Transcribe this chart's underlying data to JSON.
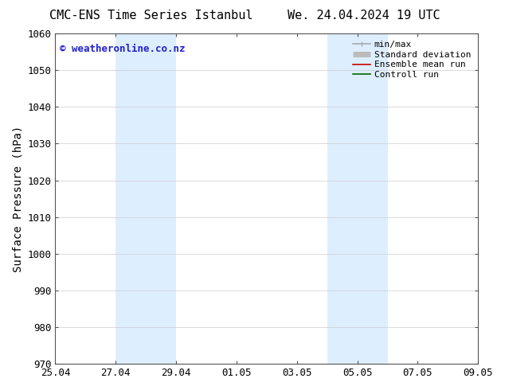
{
  "title_left": "CMC-ENS Time Series Istanbul",
  "title_right": "We. 24.04.2024 19 UTC",
  "ylabel": "Surface Pressure (hPa)",
  "ylim": [
    970,
    1060
  ],
  "yticks": [
    970,
    980,
    990,
    1000,
    1010,
    1020,
    1030,
    1040,
    1050,
    1060
  ],
  "xtick_labels": [
    "25.04",
    "27.04",
    "29.04",
    "01.05",
    "03.05",
    "05.05",
    "07.05",
    "09.05"
  ],
  "xtick_positions": [
    0,
    2,
    4,
    6,
    8,
    10,
    12,
    14
  ],
  "xlim": [
    0,
    14
  ],
  "shaded_regions": [
    {
      "x_start": 2,
      "x_end": 4,
      "color": "#ddeeff",
      "alpha": 1.0
    },
    {
      "x_start": 9,
      "x_end": 11,
      "color": "#ddeeff",
      "alpha": 1.0
    }
  ],
  "watermark_text": "© weatheronline.co.nz",
  "watermark_color": "#2222cc",
  "background_color": "#ffffff",
  "legend_items": [
    {
      "label": "min/max",
      "color": "#aaaaaa",
      "lw": 1.2
    },
    {
      "label": "Standard deviation",
      "color": "#bbbbbb",
      "lw": 5
    },
    {
      "label": "Ensemble mean run",
      "color": "#cc0000",
      "lw": 1.2
    },
    {
      "label": "Controll run",
      "color": "#006600",
      "lw": 1.2
    }
  ],
  "title_fontsize": 11,
  "ylabel_fontsize": 10,
  "tick_fontsize": 9,
  "watermark_fontsize": 9,
  "legend_fontsize": 8,
  "grid_color": "#cccccc",
  "grid_lw": 0.5,
  "spine_color": "#555555",
  "spine_lw": 0.8
}
